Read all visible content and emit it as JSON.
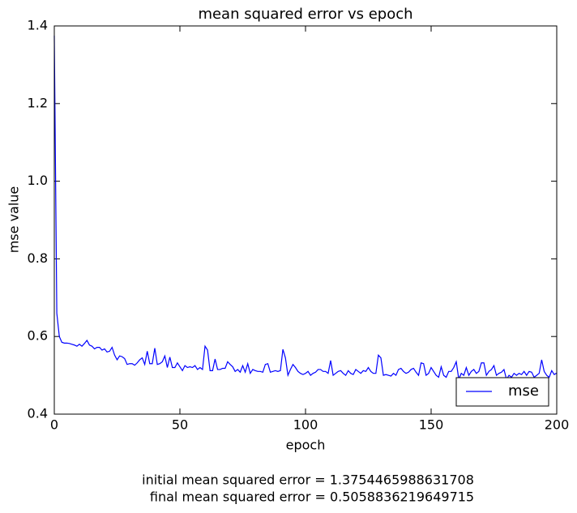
{
  "chart_data": {
    "type": "line",
    "title": "mean squared error vs epoch",
    "xlabel": "epoch",
    "ylabel": "mse value",
    "x": [
      0,
      1,
      2,
      3,
      4,
      5,
      6,
      7,
      8,
      9,
      10,
      11,
      12,
      13,
      14,
      15,
      16,
      17,
      18,
      19,
      20,
      21,
      22,
      23,
      24,
      25,
      26,
      27,
      28,
      29,
      30,
      31,
      32,
      33,
      34,
      35,
      36,
      37,
      38,
      39,
      40,
      41,
      42,
      43,
      44,
      45,
      46,
      47,
      48,
      49,
      50,
      51,
      52,
      53,
      54,
      55,
      56,
      57,
      58,
      59,
      60,
      61,
      62,
      63,
      64,
      65,
      66,
      67,
      68,
      69,
      70,
      71,
      72,
      73,
      74,
      75,
      76,
      77,
      78,
      79,
      80,
      81,
      82,
      83,
      84,
      85,
      86,
      87,
      88,
      89,
      90,
      91,
      92,
      93,
      94,
      95,
      96,
      97,
      98,
      99,
      100,
      101,
      102,
      103,
      104,
      105,
      106,
      107,
      108,
      109,
      110,
      111,
      112,
      113,
      114,
      115,
      116,
      117,
      118,
      119,
      120,
      121,
      122,
      123,
      124,
      125,
      126,
      127,
      128,
      129,
      130,
      131,
      132,
      133,
      134,
      135,
      136,
      137,
      138,
      139,
      140,
      141,
      142,
      143,
      144,
      145,
      146,
      147,
      148,
      149,
      150,
      151,
      152,
      153,
      154,
      155,
      156,
      157,
      158,
      159,
      160,
      161,
      162,
      163,
      164,
      165,
      166,
      167,
      168,
      169,
      170,
      171,
      172,
      173,
      174,
      175,
      176,
      177,
      178,
      179,
      180,
      181,
      182,
      183,
      184,
      185,
      186,
      187,
      188,
      189,
      190,
      191,
      192,
      193,
      194,
      195,
      196,
      197,
      198,
      199,
      200
    ],
    "series": [
      {
        "name": "mse",
        "color": "#0000ff",
        "values": [
          1.375,
          0.66,
          0.6,
          0.585,
          0.583,
          0.583,
          0.582,
          0.58,
          0.578,
          0.575,
          0.58,
          0.575,
          0.582,
          0.59,
          0.578,
          0.575,
          0.568,
          0.572,
          0.572,
          0.565,
          0.568,
          0.56,
          0.562,
          0.572,
          0.552,
          0.54,
          0.55,
          0.548,
          0.543,
          0.528,
          0.53,
          0.53,
          0.526,
          0.532,
          0.54,
          0.545,
          0.528,
          0.562,
          0.53,
          0.53,
          0.57,
          0.528,
          0.53,
          0.535,
          0.55,
          0.52,
          0.547,
          0.52,
          0.52,
          0.532,
          0.522,
          0.512,
          0.525,
          0.52,
          0.522,
          0.52,
          0.525,
          0.515,
          0.52,
          0.515,
          0.575,
          0.565,
          0.512,
          0.512,
          0.542,
          0.515,
          0.515,
          0.518,
          0.518,
          0.535,
          0.528,
          0.522,
          0.51,
          0.515,
          0.508,
          0.525,
          0.508,
          0.53,
          0.505,
          0.515,
          0.512,
          0.51,
          0.51,
          0.508,
          0.528,
          0.53,
          0.508,
          0.51,
          0.512,
          0.51,
          0.512,
          0.567,
          0.545,
          0.5,
          0.515,
          0.528,
          0.52,
          0.51,
          0.505,
          0.502,
          0.505,
          0.51,
          0.5,
          0.505,
          0.508,
          0.515,
          0.515,
          0.51,
          0.51,
          0.505,
          0.538,
          0.5,
          0.505,
          0.51,
          0.512,
          0.505,
          0.5,
          0.512,
          0.505,
          0.502,
          0.515,
          0.51,
          0.505,
          0.512,
          0.51,
          0.52,
          0.51,
          0.505,
          0.505,
          0.552,
          0.545,
          0.5,
          0.502,
          0.5,
          0.498,
          0.505,
          0.5,
          0.515,
          0.518,
          0.51,
          0.505,
          0.508,
          0.515,
          0.518,
          0.508,
          0.5,
          0.532,
          0.53,
          0.5,
          0.505,
          0.52,
          0.51,
          0.5,
          0.495,
          0.522,
          0.5,
          0.495,
          0.51,
          0.51,
          0.52,
          0.535,
          0.49,
          0.505,
          0.5,
          0.52,
          0.5,
          0.51,
          0.515,
          0.505,
          0.51,
          0.532,
          0.532,
          0.5,
          0.51,
          0.515,
          0.525,
          0.5,
          0.505,
          0.508,
          0.515,
          0.49,
          0.5,
          0.495,
          0.505,
          0.5,
          0.505,
          0.502,
          0.51,
          0.5,
          0.51,
          0.508,
          0.495,
          0.5,
          0.505,
          0.54,
          0.51,
          0.5,
          0.495,
          0.512,
          0.502,
          0.506
        ]
      }
    ],
    "xlim": [
      0,
      200
    ],
    "xticks": [
      0,
      50,
      100,
      150,
      200
    ],
    "ylim": [
      0.4,
      1.4
    ],
    "yticks": [
      0.4,
      0.6,
      0.8,
      {
        "value": 1,
        "label": "1.0"
      },
      1.2,
      1.4
    ],
    "grid": false,
    "legend": "lower right",
    "annotations": [
      "initial mean squared error = 1.3754465988631708",
      "final mean squared error = 0.5058836219649715"
    ]
  }
}
